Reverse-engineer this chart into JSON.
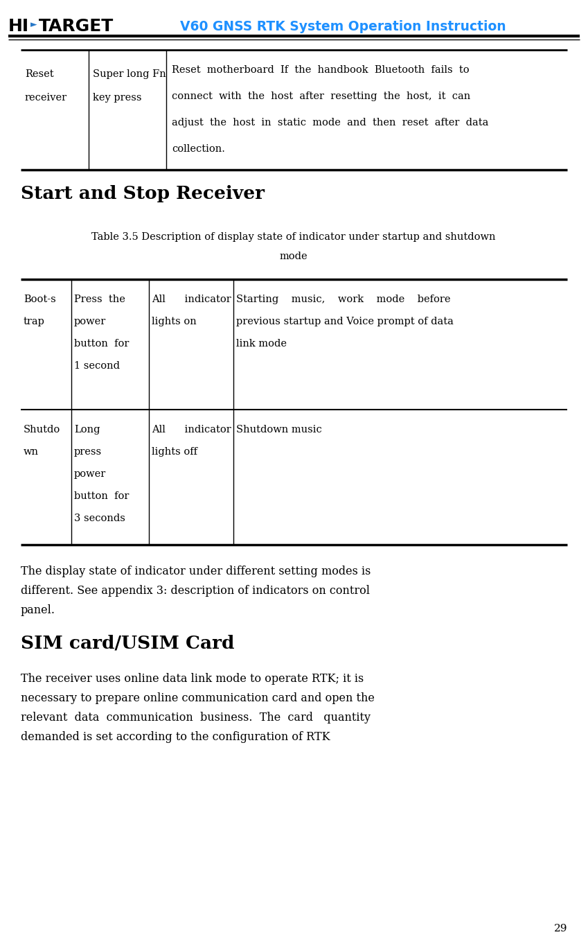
{
  "header_title": "V60 GNSS RTK System Operation Instruction",
  "header_title_color": "#1E90FF",
  "page_bg": "#ffffff",
  "page_number": "29",
  "logo_hi": "HI",
  "logo_arrow": "►",
  "logo_target": "TARGET",
  "logo_arrow_color": "#1E90FF",
  "t1_col1_lines": [
    "Reset",
    "receiver"
  ],
  "t1_col2_lines": [
    "Super long Fn",
    "key press"
  ],
  "t1_col3_lines": [
    "Reset  motherboard  If  the  handbook  Bluetooth  fails  to",
    "connect  with  the  host  after  resetting  the  host,  it  can",
    "adjust  the  host  in  static  mode  and  then  reset  after  data",
    "collection."
  ],
  "section1_title": "Start and Stop Receiver",
  "cap_line1": "Table 3.5 Description of display state of indicator under startup and shutdown",
  "cap_line2": "mode",
  "t2r1_col1": [
    "Boot-s",
    "trap"
  ],
  "t2r1_col2": [
    "Press  the",
    "power",
    "button  for",
    "1 second"
  ],
  "t2r1_col3": [
    "All      indicator",
    "lights on"
  ],
  "t2r1_col4": [
    "Starting    music,    work    mode    before",
    "previous startup and Voice prompt of data",
    "link mode"
  ],
  "t2r2_col1": [
    "Shutdo",
    "wn"
  ],
  "t2r2_col2": [
    "Long",
    "press",
    "power",
    "button  for",
    "3 seconds"
  ],
  "t2r2_col3": [
    "All      indicator",
    "lights off"
  ],
  "t2r2_col4": [
    "Shutdown music"
  ],
  "para1_lines": [
    "The display state of indicator under different setting modes is",
    "different. See appendix 3: description of indicators on control",
    "panel."
  ],
  "section2_title": "SIM card/USIM Card",
  "para2_lines": [
    "The receiver uses online data link mode to operate RTK; it is",
    "necessary to prepare online communication card and open the",
    "relevant  data  communication  business.  The  card   quantity",
    "demanded is set according to the configuration of RTK"
  ]
}
